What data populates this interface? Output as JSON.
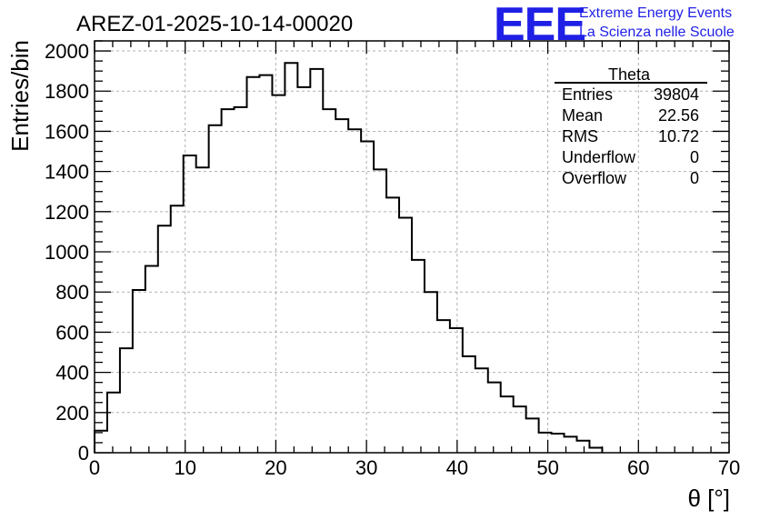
{
  "chart_data": {
    "type": "histogram",
    "title": "AREZ-01-2025-10-14-00020",
    "xlabel": "θ [°]",
    "ylabel": "Entries/bin",
    "xlim": [
      0,
      70
    ],
    "ylim": [
      0,
      2050
    ],
    "grid": true,
    "bin_width": 1.4,
    "bin_start": 0,
    "values": [
      110,
      300,
      520,
      810,
      930,
      1130,
      1230,
      1480,
      1420,
      1630,
      1710,
      1720,
      1870,
      1880,
      1780,
      1940,
      1820,
      1910,
      1710,
      1660,
      1610,
      1550,
      1410,
      1270,
      1170,
      960,
      800,
      660,
      620,
      480,
      420,
      350,
      280,
      230,
      170,
      100,
      95,
      80,
      60,
      25
    ],
    "x_ticks": [
      "0",
      "10",
      "20",
      "30",
      "40",
      "50",
      "60",
      "70"
    ],
    "x_tick_values": [
      0,
      10,
      20,
      30,
      40,
      50,
      60,
      70
    ],
    "y_ticks": [
      "0",
      "200",
      "400",
      "600",
      "800",
      "1000",
      "1200",
      "1400",
      "1600",
      "1800",
      "2000"
    ],
    "y_tick_values": [
      0,
      200,
      400,
      600,
      800,
      1000,
      1200,
      1400,
      1600,
      1800,
      2000
    ],
    "stats_box": {
      "name": "Theta",
      "rows": [
        {
          "label": "Entries",
          "value": "39804"
        },
        {
          "label": "Mean",
          "value": "22.56"
        },
        {
          "label": "RMS",
          "value": "10.72"
        },
        {
          "label": "Underflow",
          "value": "0"
        },
        {
          "label": "Overflow",
          "value": "0"
        }
      ]
    },
    "logo": {
      "mark": "EEE",
      "line1": "Extreme Energy Events",
      "line2": "La Scienza nelle Scuole",
      "color": "#1f1fe6"
    }
  }
}
